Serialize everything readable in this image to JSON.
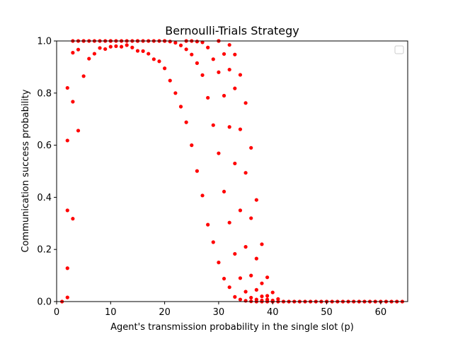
{
  "chart_data": {
    "type": "scatter",
    "title": "Bernoulli-Trials Strategy",
    "xlabel": "Agent's transmission probability in the single slot (p)",
    "ylabel": "Communication success probability",
    "xlim": [
      0,
      65
    ],
    "ylim": [
      0,
      1
    ],
    "xticks": [
      0,
      10,
      20,
      30,
      40,
      50,
      60
    ],
    "yticks": [
      0.0,
      0.2,
      0.4,
      0.6,
      0.8,
      1.0
    ],
    "x_tick_labels": [
      "0",
      "10",
      "20",
      "30",
      "40",
      "50",
      "60"
    ],
    "y_tick_labels": [
      "0.0",
      "0.2",
      "0.4",
      "0.6",
      "0.8",
      "1.0"
    ],
    "grid": false,
    "legend": "upper right (empty)",
    "marker_color": "#ff0000",
    "series": [
      {
        "values": [
          [
            1,
            0
          ],
          [
            2,
            0.016
          ],
          [
            3,
            0.318
          ],
          [
            4,
            0.656
          ],
          [
            5,
            0.865
          ],
          [
            6,
            0.932
          ],
          [
            7,
            0.951
          ],
          [
            8,
            0.973
          ],
          [
            9,
            0.969
          ],
          [
            10,
            0.978
          ],
          [
            11,
            0.98
          ],
          [
            12,
            0.978
          ],
          [
            13,
            0.984
          ],
          [
            14,
            0.975
          ],
          [
            15,
            0.962
          ],
          [
            16,
            0.961
          ],
          [
            17,
            0.951
          ],
          [
            18,
            0.93
          ],
          [
            19,
            0.922
          ],
          [
            20,
            0.895
          ],
          [
            21,
            0.848
          ],
          [
            22,
            0.8
          ],
          [
            23,
            0.748
          ],
          [
            24,
            0.688
          ],
          [
            25,
            0.6
          ],
          [
            26,
            0.501
          ],
          [
            27,
            0.407
          ],
          [
            28,
            0.295
          ],
          [
            29,
            0.228
          ],
          [
            30,
            0.15
          ],
          [
            31,
            0.088
          ],
          [
            32,
            0.055
          ],
          [
            33,
            0.018
          ],
          [
            34,
            0.008
          ],
          [
            35,
            0.003
          ],
          [
            36,
            0.001
          ],
          [
            37,
            0
          ],
          [
            38,
            0
          ],
          [
            39,
            0
          ],
          [
            40,
            0
          ],
          [
            41,
            0
          ],
          [
            42,
            0
          ],
          [
            43,
            0
          ],
          [
            44,
            0
          ],
          [
            45,
            0
          ],
          [
            46,
            0
          ],
          [
            47,
            0
          ],
          [
            48,
            0
          ],
          [
            49,
            0
          ],
          [
            50,
            0
          ],
          [
            51,
            0
          ],
          [
            52,
            0
          ],
          [
            53,
            0
          ],
          [
            54,
            0
          ],
          [
            55,
            0
          ],
          [
            56,
            0
          ],
          [
            57,
            0
          ],
          [
            58,
            0
          ],
          [
            59,
            0
          ],
          [
            60,
            0
          ],
          [
            61,
            0
          ],
          [
            62,
            0
          ],
          [
            63,
            0
          ],
          [
            64,
            0
          ]
        ]
      },
      {
        "values": [
          [
            2,
            0.128
          ],
          [
            3,
            0.767
          ],
          [
            4,
            0.967
          ],
          [
            5,
            1
          ],
          [
            6,
            1
          ],
          [
            7,
            1
          ],
          [
            8,
            1
          ],
          [
            9,
            1
          ],
          [
            10,
            1
          ],
          [
            11,
            1
          ],
          [
            12,
            1
          ],
          [
            13,
            1
          ],
          [
            14,
            1
          ],
          [
            15,
            1
          ],
          [
            16,
            1
          ],
          [
            17,
            1
          ],
          [
            18,
            1
          ],
          [
            19,
            1
          ],
          [
            20,
            1
          ],
          [
            21,
            0.998
          ],
          [
            22,
            0.993
          ],
          [
            23,
            0.983
          ],
          [
            24,
            0.968
          ],
          [
            25,
            0.948
          ],
          [
            26,
            0.915
          ],
          [
            27,
            0.869
          ],
          [
            28,
            0.782
          ],
          [
            29,
            0.677
          ],
          [
            30,
            0.569
          ],
          [
            31,
            0.422
          ],
          [
            32,
            0.303
          ],
          [
            33,
            0.183
          ],
          [
            34,
            0.09
          ],
          [
            35,
            0.038
          ],
          [
            36,
            0.015
          ],
          [
            37,
            0.008
          ],
          [
            38,
            0.004
          ],
          [
            39,
            0.001
          ],
          [
            40,
            0
          ]
        ]
      },
      {
        "values": [
          [
            2,
            0.35
          ],
          [
            3,
            0.955
          ],
          [
            4,
            1
          ],
          [
            5,
            1
          ],
          [
            10,
            1
          ],
          [
            15,
            1
          ],
          [
            20,
            1
          ],
          [
            24,
            1
          ],
          [
            25,
            1
          ],
          [
            26,
            0.998
          ],
          [
            27,
            0.995
          ],
          [
            28,
            0.975
          ],
          [
            29,
            0.93
          ],
          [
            30,
            0.88
          ],
          [
            31,
            0.79
          ],
          [
            32,
            0.67
          ],
          [
            33,
            0.53
          ],
          [
            34,
            0.35
          ],
          [
            35,
            0.21
          ],
          [
            36,
            0.1
          ],
          [
            37,
            0.045
          ],
          [
            38,
            0.02
          ],
          [
            39,
            0.008
          ]
        ]
      },
      {
        "values": [
          [
            2,
            0.618
          ],
          [
            3,
            1
          ],
          [
            30,
            1
          ],
          [
            31,
            0.95
          ],
          [
            32,
            0.89
          ],
          [
            33,
            0.818
          ],
          [
            34,
            0.661
          ],
          [
            35,
            0.494
          ],
          [
            36,
            0.32
          ],
          [
            37,
            0.165
          ],
          [
            38,
            0.07
          ],
          [
            39,
            0.022
          ],
          [
            40,
            0.004
          ]
        ]
      },
      {
        "values": [
          [
            2,
            0.82
          ],
          [
            30,
            1
          ],
          [
            32,
            0.985
          ],
          [
            33,
            0.948
          ],
          [
            34,
            0.87
          ],
          [
            35,
            0.762
          ],
          [
            36,
            0.59
          ],
          [
            37,
            0.39
          ],
          [
            38,
            0.22
          ],
          [
            39,
            0.093
          ],
          [
            40,
            0.035
          ],
          [
            41,
            0.01
          ]
        ]
      }
    ]
  }
}
